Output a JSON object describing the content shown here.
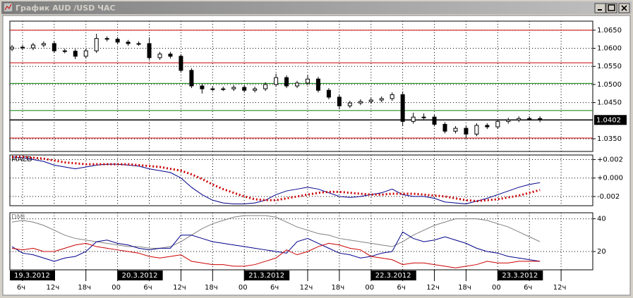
{
  "window_title": "График AUD /USD  ЧАС",
  "chart_data": [
    {
      "type": "candlestick",
      "x": [
        4,
        6,
        8,
        10,
        12,
        14,
        16,
        18,
        20,
        22,
        24,
        26,
        28,
        30,
        32,
        34,
        36,
        38,
        40,
        42,
        44,
        46,
        48,
        50,
        52,
        54,
        56,
        58,
        60,
        62,
        64,
        66,
        68,
        70,
        72,
        74,
        76,
        78,
        80,
        82,
        84,
        86,
        88,
        90,
        92,
        94,
        96,
        98,
        100,
        102,
        104
      ],
      "open": [
        1.0598,
        1.0603,
        1.0601,
        1.0609,
        1.0613,
        1.0593,
        1.0592,
        1.0578,
        1.0593,
        1.0627,
        1.0625,
        1.0617,
        1.0613,
        1.0613,
        1.0574,
        1.0584,
        1.0578,
        1.0539,
        1.0496,
        1.0488,
        1.0488,
        1.0488,
        1.0492,
        1.0484,
        1.0488,
        1.05,
        1.0519,
        1.0496,
        1.0504,
        1.0515,
        1.0484,
        1.0465,
        1.0441,
        1.0449,
        1.0453,
        1.0457,
        1.0461,
        1.0472,
        1.0398,
        1.041,
        1.041,
        1.039,
        1.0371,
        1.0379,
        1.0363,
        1.0387,
        1.0383,
        1.0398,
        1.0402,
        1.0406,
        1.0406
      ],
      "high": [
        1.0609,
        1.0609,
        1.0615,
        1.0619,
        1.0619,
        1.0599,
        1.0598,
        1.0599,
        1.064,
        1.0633,
        1.0631,
        1.0623,
        1.0619,
        1.063,
        1.059,
        1.059,
        1.0584,
        1.0545,
        1.0502,
        1.0494,
        1.0494,
        1.0498,
        1.0498,
        1.0494,
        1.0506,
        1.053,
        1.0525,
        1.051,
        1.0527,
        1.0521,
        1.049,
        1.0471,
        1.0455,
        1.0459,
        1.0463,
        1.0467,
        1.0478,
        1.048,
        1.0422,
        1.042,
        1.0416,
        1.0396,
        1.0385,
        1.0385,
        1.0393,
        1.0393,
        1.0404,
        1.0408,
        1.0412,
        1.0412,
        1.0412
      ],
      "low": [
        1.0592,
        1.0595,
        1.0595,
        1.0603,
        1.0587,
        1.0586,
        1.057,
        1.0572,
        1.0587,
        1.0619,
        1.0611,
        1.0607,
        1.0607,
        1.0568,
        1.0568,
        1.0572,
        1.0533,
        1.049,
        1.0475,
        1.0482,
        1.0482,
        1.0482,
        1.0478,
        1.0478,
        1.0482,
        1.0494,
        1.049,
        1.049,
        1.0498,
        1.0478,
        1.0459,
        1.0432,
        1.0435,
        1.0443,
        1.0447,
        1.0451,
        1.0455,
        1.0385,
        1.0392,
        1.0404,
        1.0384,
        1.0365,
        1.0365,
        1.035,
        1.0357,
        1.0377,
        1.0377,
        1.0392,
        1.0396,
        1.04,
        1.0396
      ],
      "close": [
        1.0603,
        1.0601,
        1.0609,
        1.0613,
        1.0593,
        1.0592,
        1.0578,
        1.0593,
        1.0627,
        1.0625,
        1.0617,
        1.0613,
        1.0613,
        1.0574,
        1.0584,
        1.0578,
        1.0539,
        1.0496,
        1.0488,
        1.0488,
        1.0488,
        1.0492,
        1.0484,
        1.0488,
        1.05,
        1.0519,
        1.0496,
        1.0504,
        1.0515,
        1.0484,
        1.0465,
        1.0441,
        1.0449,
        1.0453,
        1.0457,
        1.0461,
        1.0472,
        1.0398,
        1.041,
        1.041,
        1.039,
        1.0371,
        1.0379,
        1.0363,
        1.0387,
        1.0383,
        1.0398,
        1.0402,
        1.0406,
        1.0406,
        1.0402
      ],
      "xlim": [
        3.6,
        114
      ],
      "ylim": [
        1.0315,
        1.0675
      ],
      "yticks": [
        {
          "value": 1.065,
          "label": "1.0650"
        },
        {
          "value": 1.06,
          "label": "1.0600"
        },
        {
          "value": 1.055,
          "label": "1.0550"
        },
        {
          "value": 1.05,
          "label": "1.0500"
        },
        {
          "value": 1.045,
          "label": "1.0450"
        },
        {
          "value": 1.035,
          "label": "1.0350"
        }
      ],
      "levels": [
        {
          "value": 1.065,
          "color": "#cc0000"
        },
        {
          "value": 1.056,
          "color": "#cc0000"
        },
        {
          "value": 1.0503,
          "color": "#008000"
        },
        {
          "value": 1.0428,
          "color": "#008000"
        },
        {
          "value": 1.0402,
          "color": "#000000"
        },
        {
          "value": 1.0352,
          "color": "#cc0000"
        }
      ],
      "last_price": {
        "value": 1.0402,
        "label": "1.0402"
      },
      "grid": true
    },
    {
      "type": "line",
      "title": "MACD",
      "x": [
        4,
        6,
        8,
        10,
        12,
        14,
        16,
        18,
        20,
        22,
        24,
        26,
        28,
        30,
        32,
        34,
        36,
        38,
        40,
        42,
        44,
        46,
        48,
        50,
        52,
        54,
        56,
        58,
        60,
        62,
        64,
        66,
        68,
        70,
        72,
        74,
        76,
        78,
        80,
        82,
        84,
        86,
        88,
        90,
        92,
        94,
        96,
        98,
        100,
        102,
        104
      ],
      "series": [
        {
          "color": "#00008b",
          "values": [
            0.0023,
            0.0022,
            0.002,
            0.0018,
            0.0014,
            0.0012,
            0.001,
            0.0012,
            0.0014,
            0.0015,
            0.0015,
            0.0014,
            0.0013,
            0.001,
            0.0008,
            0.0006,
            0,
            -0.001,
            -0.0018,
            -0.0024,
            -0.0027,
            -0.0028,
            -0.0028,
            -0.0027,
            -0.0024,
            -0.0018,
            -0.0014,
            -0.0012,
            -0.001,
            -0.0012,
            -0.0016,
            -0.002,
            -0.0021,
            -0.002,
            -0.0018,
            -0.0016,
            -0.0012,
            -0.0018,
            -0.002,
            -0.002,
            -0.0022,
            -0.0026,
            -0.0027,
            -0.0028,
            -0.0025,
            -0.0022,
            -0.0018,
            -0.0014,
            -0.001,
            -0.0007,
            -0.0005
          ]
        },
        {
          "color": "#cc0000",
          "dotted": true,
          "values": [
            0.0023,
            0.0023,
            0.0022,
            0.0021,
            0.0019,
            0.0017,
            0.0016,
            0.0015,
            0.0015,
            0.0015,
            0.0015,
            0.0015,
            0.0014,
            0.0013,
            0.0012,
            0.001,
            0.0008,
            0.0004,
            -0.0001,
            -0.0007,
            -0.0012,
            -0.0016,
            -0.002,
            -0.0023,
            -0.0024,
            -0.0024,
            -0.0022,
            -0.002,
            -0.0018,
            -0.0016,
            -0.0015,
            -0.0015,
            -0.0016,
            -0.0017,
            -0.0018,
            -0.0018,
            -0.0017,
            -0.0017,
            -0.0017,
            -0.0018,
            -0.0019,
            -0.002,
            -0.0022,
            -0.0024,
            -0.0025,
            -0.0024,
            -0.0023,
            -0.0021,
            -0.0019,
            -0.0016,
            -0.0013
          ]
        }
      ],
      "xlim": [
        3.6,
        114
      ],
      "ylim": [
        -0.003,
        0.0025
      ],
      "yticks": [
        {
          "value": 0.002,
          "label": "+0.002"
        },
        {
          "value": 0,
          "label": "+0.000"
        },
        {
          "value": -0.002,
          "label": "-0.002"
        }
      ],
      "grid": true
    },
    {
      "type": "line",
      "title": "DMI",
      "x": [
        4,
        6,
        8,
        10,
        12,
        14,
        16,
        18,
        20,
        22,
        24,
        26,
        28,
        30,
        32,
        34,
        36,
        38,
        40,
        42,
        44,
        46,
        48,
        50,
        52,
        54,
        56,
        58,
        60,
        62,
        64,
        66,
        68,
        70,
        72,
        74,
        76,
        78,
        80,
        82,
        84,
        86,
        88,
        90,
        92,
        94,
        96,
        98,
        100,
        102,
        104
      ],
      "series": [
        {
          "color": "#808080",
          "values": [
            38,
            39,
            38,
            36,
            33,
            30,
            28,
            27,
            26,
            25,
            24,
            23,
            23,
            22,
            22,
            23,
            26,
            30,
            34,
            37,
            39,
            41,
            42,
            42,
            42,
            41,
            38,
            35,
            33,
            31,
            30,
            28,
            27,
            26,
            25,
            24,
            23,
            26,
            30,
            33,
            36,
            38,
            40,
            40,
            40,
            39,
            37,
            35,
            32,
            29,
            26
          ]
        },
        {
          "color": "#00008b",
          "values": [
            23,
            19,
            18,
            16,
            14,
            16,
            17,
            20,
            26,
            27,
            25,
            24,
            22,
            21,
            22,
            22,
            30,
            30,
            28,
            26,
            25,
            24,
            23,
            22,
            21,
            20,
            19,
            26,
            28,
            25,
            22,
            19,
            18,
            16,
            17,
            19,
            20,
            32,
            28,
            26,
            27,
            29,
            27,
            25,
            22,
            20,
            19,
            17,
            16,
            15,
            14
          ]
        },
        {
          "color": "#cc0000",
          "values": [
            22,
            21,
            22,
            20,
            20,
            22,
            24,
            25,
            23,
            22,
            21,
            20,
            19,
            17,
            16,
            17,
            18,
            14,
            13,
            12,
            12,
            11,
            11,
            12,
            14,
            16,
            21,
            18,
            20,
            23,
            25,
            24,
            22,
            21,
            17,
            16,
            15,
            12,
            13,
            13,
            12,
            11,
            10,
            11,
            12,
            14,
            13,
            13,
            14,
            14,
            14
          ]
        }
      ],
      "xlim": [
        3.6,
        114
      ],
      "ylim": [
        8.8,
        43.7
      ],
      "yticks": [
        40,
        20
      ],
      "xticks": [
        {
          "value": 6,
          "label": "6ч"
        },
        {
          "value": 12,
          "label": "12ч"
        },
        {
          "value": 18,
          "label": "18ч"
        },
        {
          "value": 24,
          "label": "00"
        },
        {
          "value": 30,
          "label": "6ч"
        },
        {
          "value": 36,
          "label": "12ч"
        },
        {
          "value": 42,
          "label": "18ч"
        },
        {
          "value": 48,
          "label": "00"
        },
        {
          "value": 54,
          "label": "6ч"
        },
        {
          "value": 60,
          "label": "12ч"
        },
        {
          "value": 66,
          "label": "18ч"
        },
        {
          "value": 72,
          "label": "00"
        },
        {
          "value": 78,
          "label": "6ч"
        },
        {
          "value": 84,
          "label": "12ч"
        },
        {
          "value": 90,
          "label": "18ч"
        },
        {
          "value": 96,
          "label": "00"
        },
        {
          "value": 102,
          "label": "6ч"
        },
        {
          "value": 108,
          "label": "12ч"
        }
      ],
      "date_labels": [
        {
          "value": 0,
          "label": "19.3.2012"
        },
        {
          "value": 24,
          "label": "20.3.2012"
        },
        {
          "value": 48,
          "label": "21.3.2012"
        },
        {
          "value": 72,
          "label": "22.3.2012"
        },
        {
          "value": 96,
          "label": "23.3.2012"
        }
      ],
      "grid": true
    }
  ]
}
